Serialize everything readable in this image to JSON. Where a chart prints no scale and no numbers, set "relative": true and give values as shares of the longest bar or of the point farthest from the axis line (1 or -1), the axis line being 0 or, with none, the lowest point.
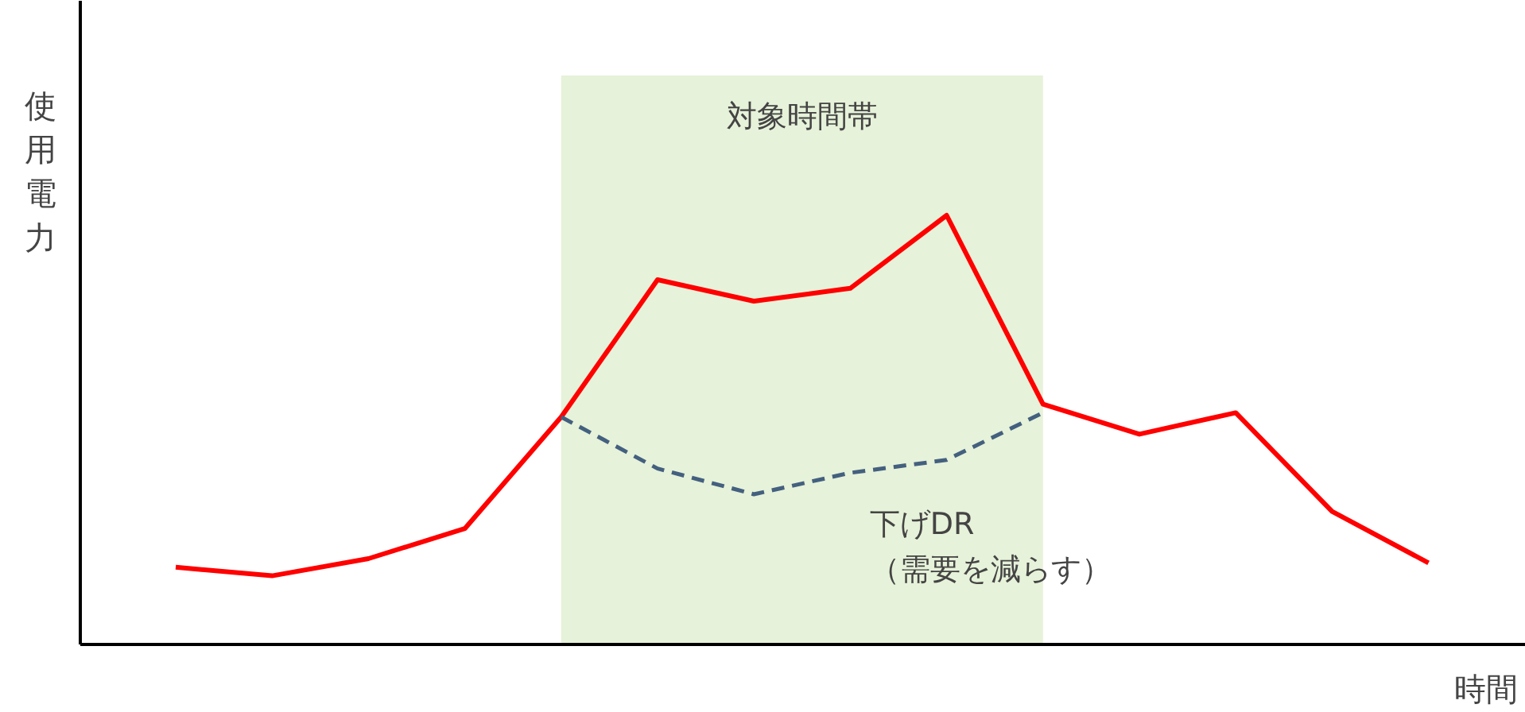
{
  "chart_data": {
    "type": "line",
    "relative": true,
    "xlabel": "時間",
    "ylabel": "使用電力",
    "categories": [
      null,
      null,
      null,
      null,
      null,
      null,
      null,
      null,
      null,
      null,
      null,
      null,
      null,
      null
    ],
    "series": [
      {
        "color": "#ff0000",
        "line_style": "solid",
        "values": [
          0.18,
          0.16,
          0.2,
          0.27,
          0.53,
          0.85,
          0.8,
          0.83,
          1,
          0.56,
          0.49,
          0.54,
          0.31,
          0.19
        ]
      },
      {
        "color": "#44607f",
        "line_style": "dashed",
        "values": [
          null,
          null,
          null,
          null,
          0.53,
          0.41,
          0.35,
          0.4,
          0.43,
          0.54,
          null,
          null,
          null,
          null
        ]
      }
    ],
    "annotations": [
      "対象時間帯",
      "下げDR\n（需要を減らす）"
    ],
    "marker": "none"
  }
}
